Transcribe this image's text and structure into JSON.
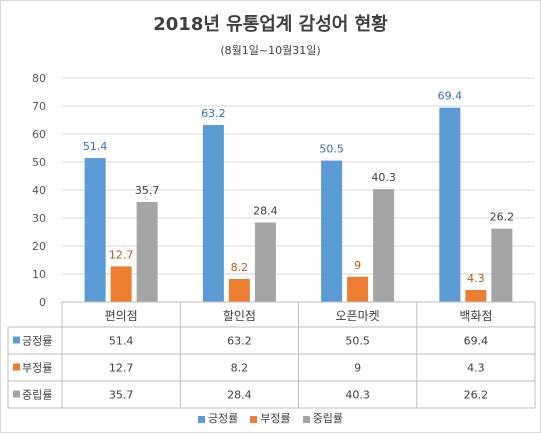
{
  "chart_data": {
    "type": "bar",
    "title": "2018년 유통업계 감성어 현황",
    "subtitle": "(8월1일~10월31일)",
    "categories": [
      "편의점",
      "할인점",
      "오픈마켓",
      "백화점"
    ],
    "series": [
      {
        "name": "긍정률",
        "values": [
          "51.4",
          "63.2",
          "50.5",
          "69.4"
        ],
        "color": "#5B9BD5"
      },
      {
        "name": "부정률",
        "values": [
          "12.7",
          "8.2",
          "9",
          "4.3"
        ],
        "color": "#ED7D31"
      },
      {
        "name": "중립률",
        "values": [
          "35.7",
          "28.4",
          "40.3",
          "26.2"
        ],
        "color": "#A5A5A5"
      }
    ],
    "ylim": [
      0,
      80
    ],
    "yticks": [
      "0",
      "10",
      "20",
      "30",
      "40",
      "50",
      "60",
      "70",
      "80"
    ],
    "grid": true,
    "legend": "bottom",
    "data_table": true,
    "label_colors": [
      "#2E75B6",
      "#C55A11",
      "#404040"
    ]
  }
}
